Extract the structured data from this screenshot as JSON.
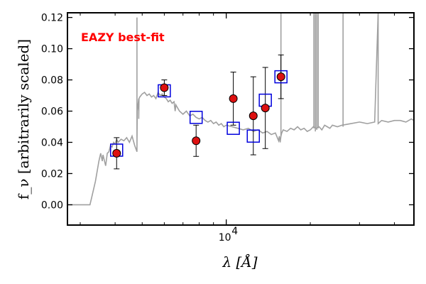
{
  "chart_data": {
    "type": "scatter",
    "title": "",
    "xlabel": "λ [Å]",
    "ylabel": "f_ν [arbitrarily scaled]",
    "x_scale": "log",
    "xlim": [
      2700,
      47000
    ],
    "ylim": [
      -0.013,
      0.123
    ],
    "yticks": [
      0.0,
      0.02,
      0.04,
      0.06,
      0.08,
      0.1,
      0.12
    ],
    "ytick_labels": [
      "0.00",
      "0.02",
      "0.04",
      "0.06",
      "0.08",
      "0.10",
      "0.12"
    ],
    "xtick_label_base": "10",
    "xtick_label_exp": "4",
    "xtick_value": 10000,
    "grid": false,
    "annotation": {
      "text": "EAZY best-fit",
      "color": "#ff0000"
    },
    "colors": {
      "template": "#a0a0a0",
      "points": "#dd1111",
      "boxes": "#0000dd",
      "errorbars": "#000000"
    },
    "series": [
      {
        "type": "errorbar",
        "x": [
          4050,
          6000,
          7800,
          10600,
          12500,
          13800,
          15700
        ],
        "y": [
          0.033,
          0.075,
          0.041,
          0.068,
          0.057,
          0.062,
          0.082
        ],
        "yerr": [
          0.01,
          0.005,
          0.01,
          0.017,
          0.025,
          0.026,
          0.014
        ]
      },
      {
        "type": "model-boxes",
        "x": [
          4050,
          6000,
          7800,
          10600,
          12500,
          13800,
          15700
        ],
        "y": [
          0.035,
          0.073,
          0.056,
          0.049,
          0.044,
          0.067,
          0.082
        ]
      },
      {
        "type": "template-line",
        "x": [
          2700,
          3250,
          3300,
          3400,
          3500,
          3550,
          3600,
          3620,
          3700,
          3750,
          3800,
          3850,
          3900,
          3950,
          4000,
          4050,
          4100,
          4200,
          4300,
          4400,
          4500,
          4600,
          4700,
          4790,
          4790,
          4790,
          4800,
          4860,
          4860,
          4870,
          4900,
          5000,
          5100,
          5200,
          5300,
          5400,
          5500,
          5600,
          5700,
          5800,
          5900,
          6000,
          6100,
          6200,
          6300,
          6400,
          6500,
          6563,
          6563,
          6563,
          6600,
          6700,
          6800,
          7000,
          7200,
          7400,
          7600,
          7800,
          8000,
          8200,
          8400,
          8600,
          8800,
          9000,
          9200,
          9400,
          9600,
          9800,
          10000,
          10500,
          11000,
          11500,
          12000,
          12500,
          13000,
          13500,
          14000,
          14500,
          15000,
          15400,
          15500,
          15600,
          15700,
          15700,
          15700,
          15800,
          16000,
          16500,
          17000,
          17500,
          18000,
          18500,
          19000,
          19500,
          20000,
          20500,
          21000,
          21500,
          22000,
          22500,
          23000,
          23500,
          24000,
          25000,
          26000,
          28000,
          30000,
          32000,
          34000,
          35000,
          35000,
          35000,
          36000,
          38000,
          40000,
          42000,
          44000,
          46000,
          47000
        ],
        "y": [
          0.0,
          0.0,
          0.005,
          0.015,
          0.028,
          0.033,
          0.028,
          0.032,
          0.025,
          0.033,
          0.034,
          0.038,
          0.037,
          0.04,
          0.039,
          0.042,
          0.04,
          0.042,
          0.041,
          0.043,
          0.04,
          0.044,
          0.038,
          0.034,
          0.12,
          0.034,
          0.06,
          0.068,
          0.055,
          0.068,
          0.069,
          0.071,
          0.072,
          0.07,
          0.071,
          0.069,
          0.07,
          0.068,
          0.072,
          0.07,
          0.071,
          0.069,
          0.068,
          0.066,
          0.067,
          0.065,
          0.066,
          0.06,
          0.063,
          0.06,
          0.064,
          0.062,
          0.06,
          0.058,
          0.06,
          0.057,
          0.058,
          0.056,
          0.055,
          0.056,
          0.054,
          0.053,
          0.054,
          0.052,
          0.053,
          0.051,
          0.052,
          0.05,
          0.051,
          0.05,
          0.049,
          0.048,
          0.049,
          0.047,
          0.048,
          0.046,
          0.047,
          0.045,
          0.046,
          0.041,
          0.044,
          0.04,
          0.044,
          0.123,
          0.044,
          0.046,
          0.048,
          0.047,
          0.049,
          0.048,
          0.05,
          0.048,
          0.049,
          0.047,
          0.048,
          0.05,
          0.049,
          0.05,
          0.048,
          0.051,
          0.05,
          0.049,
          0.051,
          0.05,
          0.051,
          0.052,
          0.053,
          0.052,
          0.053,
          0.123,
          0.053,
          0.052,
          0.054,
          0.053,
          0.054,
          0.054,
          0.053,
          0.055,
          0.054
        ],
        "spikes": [
          {
            "x": 20600,
            "y0": 0.049,
            "y1": 0.123
          },
          {
            "x": 20850,
            "y0": 0.047,
            "y1": 0.123
          },
          {
            "x": 21100,
            "y0": 0.048,
            "y1": 0.123
          },
          {
            "x": 21350,
            "y0": 0.049,
            "y1": 0.123
          },
          {
            "x": 26200,
            "y0": 0.05,
            "y1": 0.123
          }
        ]
      }
    ]
  }
}
